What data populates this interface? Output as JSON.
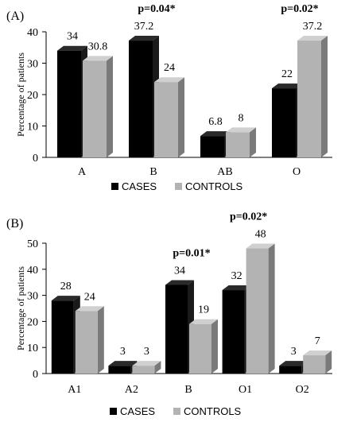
{
  "chart_data": [
    {
      "type": "bar",
      "panel_label": "(A)",
      "categories": [
        "A",
        "B",
        "AB",
        "O"
      ],
      "series": [
        {
          "name": "CASES",
          "values": [
            34,
            37.2,
            6.8,
            22
          ]
        },
        {
          "name": "CONTROLS",
          "values": [
            30.8,
            24,
            8,
            37.2
          ]
        }
      ],
      "value_labels": [
        [
          "34",
          "30.8"
        ],
        [
          "37.2",
          "24"
        ],
        [
          "6.8",
          "8"
        ],
        [
          "22",
          "37.2"
        ]
      ],
      "annotations": [
        "",
        "p=0.04*",
        "",
        "p=0.02*"
      ],
      "ylabel": "Percentage of patients",
      "yticks": [
        "0",
        "10",
        "20",
        "30",
        "40"
      ],
      "ylim": [
        0,
        40
      ],
      "legend": {
        "position": "bottom",
        "labels": [
          "CASES",
          "CONTROLS"
        ]
      }
    },
    {
      "type": "bar",
      "panel_label": "(B)",
      "categories": [
        "A1",
        "A2",
        "B",
        "O1",
        "O2"
      ],
      "series": [
        {
          "name": "CASES",
          "values": [
            28,
            3,
            34,
            32,
            3
          ]
        },
        {
          "name": "CONTROLS",
          "values": [
            24,
            3,
            19,
            48,
            7
          ]
        }
      ],
      "value_labels": [
        [
          "28",
          "24"
        ],
        [
          "3",
          "3"
        ],
        [
          "34",
          "19"
        ],
        [
          "32",
          "48"
        ],
        [
          "3",
          "7"
        ]
      ],
      "annotations": [
        "",
        "",
        "p=0.01*",
        "p=0.02*",
        ""
      ],
      "ylabel": "Percentage of patients",
      "yticks": [
        "0",
        "10",
        "20",
        "30",
        "40",
        "50"
      ],
      "ylim": [
        0,
        50
      ],
      "legend": {
        "position": "bottom",
        "labels": [
          "CASES",
          "CONTROLS"
        ]
      }
    }
  ],
  "colors": {
    "cases_front": "#000000",
    "cases_top": "#2a2a2a",
    "cases_side": "#1a1a1a",
    "controls_front": "#b3b3b3",
    "controls_top": "#d0d0d0",
    "controls_side": "#7a7a7a",
    "axis": "#000000"
  }
}
